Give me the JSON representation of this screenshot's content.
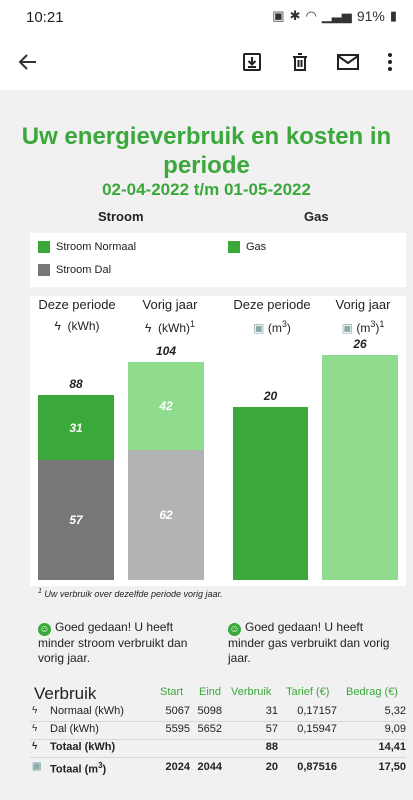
{
  "status": {
    "time": "10:21",
    "battery": "91%"
  },
  "report": {
    "title": "Uw energieverbruik en kosten in periode",
    "period": "02-04-2022 t/m 01-05-2022",
    "sections": {
      "stroom": "Stroom",
      "gas": "Gas"
    },
    "legend": {
      "stroom_normaal": "Stroom Normaal",
      "stroom_dal": "Stroom Dal",
      "gas": "Gas"
    },
    "columns": {
      "deze_periode": "Deze periode",
      "vorig_jaar": "Vorig jaar",
      "unit_kwh": "(kWh)",
      "unit_m3": "(m",
      "sup3": "3",
      "close": ")",
      "sup1": "1"
    },
    "footnote_sup": "1",
    "footnote": " Uw verbruik over dezelfde periode vorig jaar.",
    "messages": {
      "stroom": "Goed gedaan! U heeft minder stroom verbruikt dan vorig jaar.",
      "gas": "Goed gedaan! U heeft minder gas verbruikt dan vorig jaar."
    }
  },
  "chart_data": [
    {
      "type": "bar",
      "stacked": true,
      "title": "Stroom",
      "categories": [
        "Deze periode",
        "Vorig jaar"
      ],
      "unit": "kWh",
      "series": [
        {
          "name": "Stroom Dal",
          "values": [
            57,
            62
          ]
        },
        {
          "name": "Stroom Normaal",
          "values": [
            31,
            42
          ]
        }
      ],
      "totals": [
        88,
        104
      ]
    },
    {
      "type": "bar",
      "title": "Gas",
      "categories": [
        "Deze periode",
        "Vorig jaar"
      ],
      "unit": "m3",
      "series": [
        {
          "name": "Gas",
          "values": [
            20,
            26
          ]
        }
      ]
    }
  ],
  "table": {
    "title": "Verbruik",
    "headers": {
      "start": "Start",
      "eind": "Eind",
      "verbruik": "Verbruik",
      "tarief": "Tarief (€)",
      "bedrag": "Bedrag (€)"
    },
    "rows": [
      {
        "label": "Normaal (kWh)",
        "start": "5067",
        "eind": "5098",
        "verbruik": "31",
        "tarief": "0,17157",
        "bedrag": "5,32"
      },
      {
        "label": "Dal (kWh)",
        "start": "5595",
        "eind": "5652",
        "verbruik": "57",
        "tarief": "0,15947",
        "bedrag": "9,09"
      },
      {
        "label": "Totaal (kWh)",
        "start": "",
        "eind": "",
        "verbruik": "88",
        "tarief": "",
        "bedrag": "14,41"
      },
      {
        "label": "Totaal (m",
        "label_sup": "3",
        "label_close": ")",
        "start": "2024",
        "eind": "2044",
        "verbruik": "20",
        "tarief": "0,87516",
        "bedrag": "17,50"
      }
    ]
  },
  "colors": {
    "green": "#3aa83a",
    "light_green": "#8fdc8f",
    "dark_gray": "#777777",
    "light_gray": "#b3b3b3"
  }
}
